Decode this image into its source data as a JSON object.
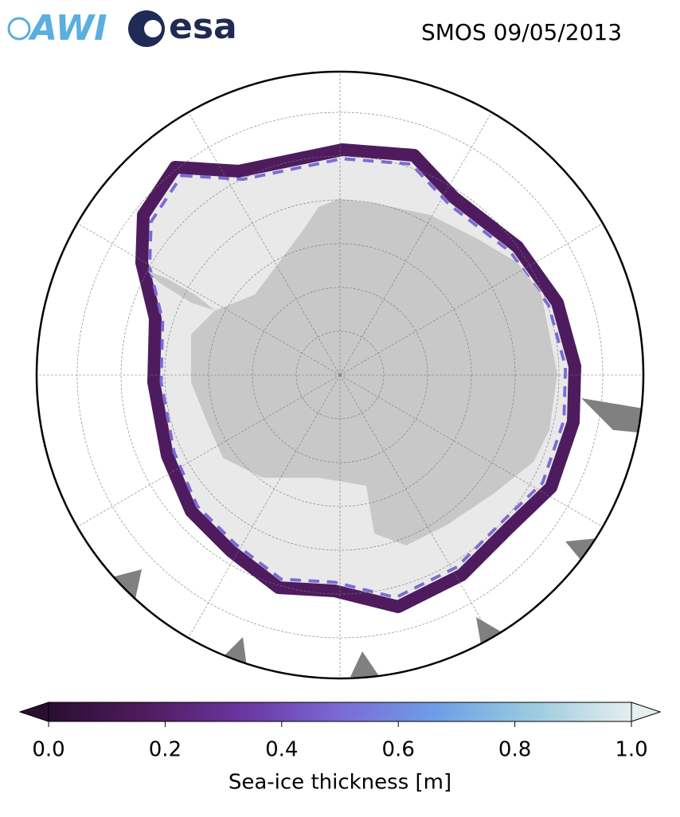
{
  "logos": [
    "AWI",
    "esa"
  ],
  "title": "SMOS 09/05/2013",
  "colorbar": {
    "label": "Sea-ice thickness [m]",
    "lim": [
      0,
      1
    ],
    "ticks": [
      {
        "value": 0,
        "label": "0.0"
      },
      {
        "value": 0.2,
        "label": "0.2"
      },
      {
        "value": 0.4,
        "label": "0.4"
      },
      {
        "value": 0.6,
        "label": "0.6"
      },
      {
        "value": 0.8,
        "label": "0.8"
      },
      {
        "value": 1,
        "label": "1.0"
      }
    ],
    "colors": [
      "#2a0e2f",
      "#4e1c5e",
      "#6a36a0",
      "#7b6ad6",
      "#6e9fe6",
      "#9ccbe0",
      "#e6eeee"
    ],
    "extend": "both"
  }
}
